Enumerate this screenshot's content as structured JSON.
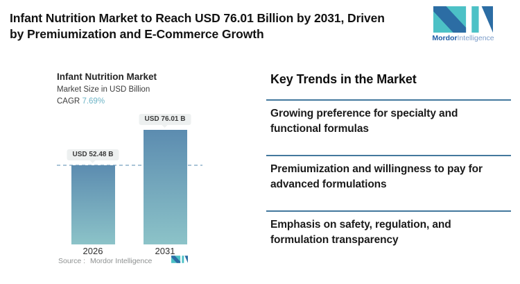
{
  "header": {
    "title_lines": [
      "Infant Nutrition Market to Reach USD 76.01 Billion by 2031, Driven",
      "by Premiumization and E-Commerce Growth"
    ],
    "logo": {
      "brand_bold": "Mordor",
      "brand_light": "Intelligence"
    }
  },
  "chart": {
    "title": "Infant Nutrition Market",
    "subtitle": "Market Size in USD Billion",
    "cagr_label": "CAGR",
    "cagr_value": "7.69%",
    "source_label": "Source :",
    "source_value": "Mordor Intelligence"
  },
  "chart_data": {
    "type": "bar",
    "title": "Infant Nutrition Market",
    "subtitle": "Market Size in USD Billion",
    "cagr": "7.69%",
    "categories": [
      "2026",
      "2031"
    ],
    "values": [
      52.48,
      76.01
    ],
    "value_labels": [
      "USD 52.48 B",
      "USD 76.01 B"
    ],
    "ylim": [
      0,
      76.01
    ],
    "reference_line_value": 52.48,
    "grid": "off",
    "legend": "none",
    "bar_color_top": "#5c8cb0",
    "bar_color_bottom": "#8cc3c8",
    "reference_line_color": "#a9c4d7",
    "source": "Mordor Intelligence"
  },
  "trends": {
    "heading": "Key Trends in the Market",
    "items": [
      [
        "Growing preference for specialty and",
        "functional formulas"
      ],
      [
        "Premiumization and willingness to pay for",
        "advanced formulations"
      ],
      [
        "Emphasis on safety, regulation, and",
        "formulation transparency"
      ]
    ],
    "divider_color": "#43789d"
  },
  "colors": {
    "background": "#ffffff",
    "title_text": "#121212",
    "accent_teal": "#4cc1c6",
    "accent_blue": "#2c6da4",
    "cagr_value": "#6db4c6"
  }
}
